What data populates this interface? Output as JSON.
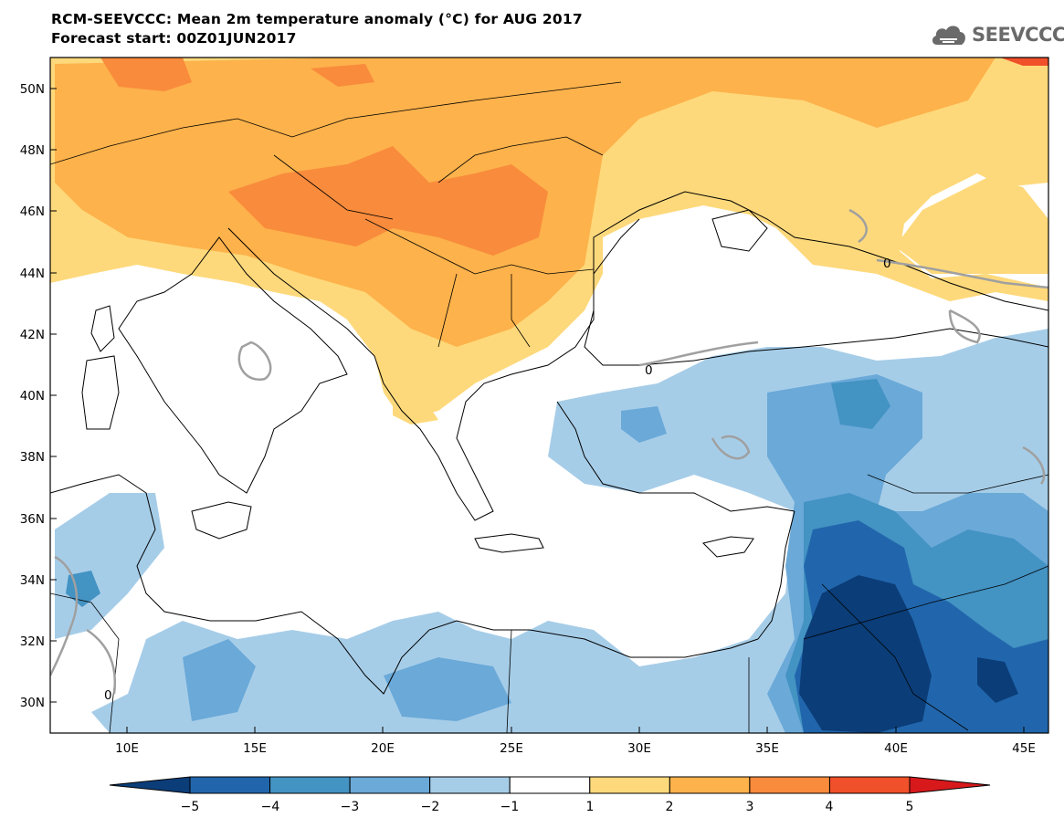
{
  "header": {
    "title": "RCM-SEEVCCC: Mean 2m temperature anomaly (°C) for AUG 2017",
    "subtitle": "Forecast start: 00Z01JUN2017",
    "logo_text": "SEEVCCC"
  },
  "map": {
    "lat_labels": [
      "50N",
      "48N",
      "46N",
      "44N",
      "42N",
      "40N",
      "38N",
      "36N",
      "34N",
      "32N",
      "30N"
    ],
    "lon_labels": [
      "10E",
      "15E",
      "20E",
      "25E",
      "30E",
      "35E",
      "40E",
      "45E"
    ],
    "contour_label": "0"
  },
  "colorbar": {
    "colors": [
      "#0b3d78",
      "#2166ac",
      "#4393c3",
      "#6aa9d8",
      "#a6cde8",
      "#ffffff",
      "#fed97b",
      "#fdb24b",
      "#f98b3c",
      "#f0502a",
      "#d7191c"
    ],
    "labels": [
      "−5",
      "−4",
      "−3",
      "−2",
      "−1",
      "1",
      "2",
      "3",
      "4",
      "5"
    ]
  }
}
